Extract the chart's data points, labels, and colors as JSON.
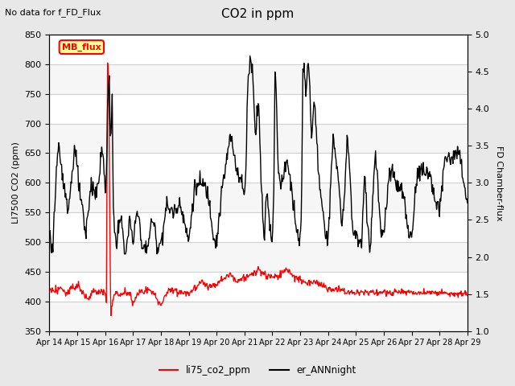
{
  "title": "CO2 in ppm",
  "subtitle": "No data for f_FD_Flux",
  "ylabel_left": "LI7500 CO2 (ppm)",
  "ylabel_right": "FD Chamber-flux",
  "ylim_left": [
    350,
    850
  ],
  "ylim_right": [
    1.0,
    5.0
  ],
  "yticks_left": [
    350,
    400,
    450,
    500,
    550,
    600,
    650,
    700,
    750,
    800,
    850
  ],
  "yticks_right": [
    1.0,
    1.5,
    2.0,
    2.5,
    3.0,
    3.5,
    4.0,
    4.5,
    5.0
  ],
  "xtick_labels": [
    "Apr 14",
    "Apr 15",
    "Apr 16",
    "Apr 17",
    "Apr 18",
    "Apr 19",
    "Apr 20",
    "Apr 21",
    "Apr 22",
    "Apr 23",
    "Apr 24",
    "Apr 25",
    "Apr 26",
    "Apr 27",
    "Apr 28",
    "Apr 29"
  ],
  "legend_labels": [
    "li75_co2_ppm",
    "er_ANNnight"
  ],
  "legend_colors": [
    "red",
    "black"
  ],
  "mb_flux_label": "MB_flux",
  "mb_flux_bg": "#ffff99",
  "mb_flux_border": "red",
  "bg_color": "#e8e8e8",
  "plot_bg": "#ffffff",
  "grid_color": "#d0d0d0",
  "co2_color": "red",
  "er_color": "black",
  "co2_linewidth": 1.0,
  "er_linewidth": 1.0,
  "figsize": [
    6.4,
    4.8
  ],
  "dpi": 100
}
